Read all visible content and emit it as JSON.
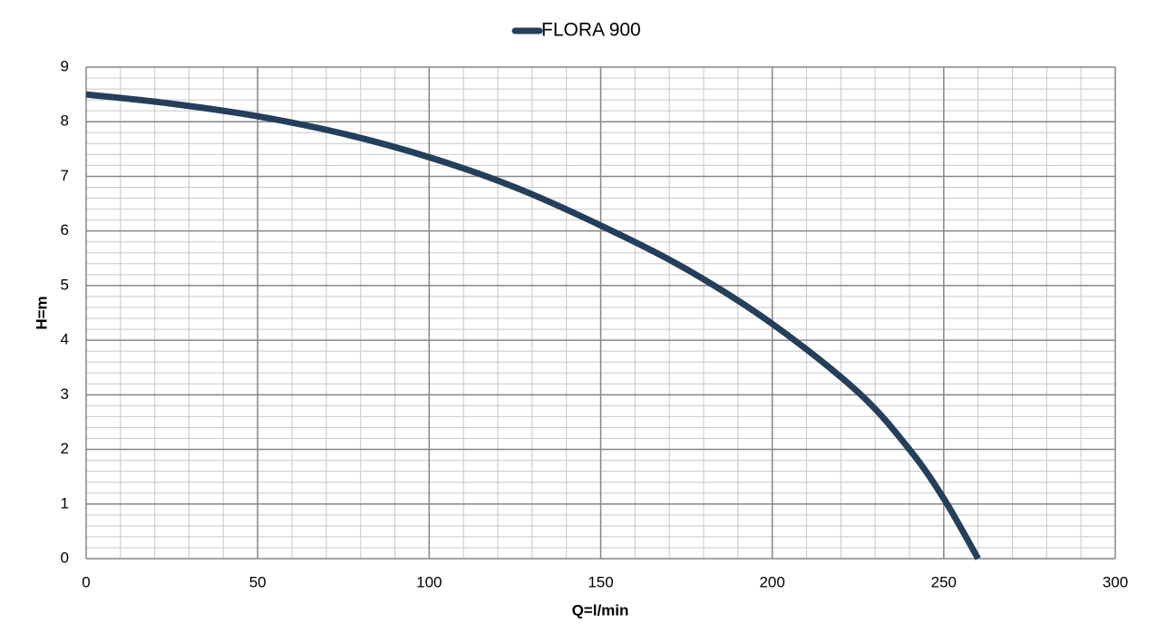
{
  "chart_data": {
    "type": "line",
    "x_label": "Q=l/min",
    "y_label": "H=m",
    "x": [
      0,
      25,
      50,
      75,
      100,
      125,
      150,
      175,
      200,
      225,
      240,
      250,
      260
    ],
    "series": [
      {
        "name": "FLORA 900",
        "color": "#243f5c",
        "values": [
          8.5,
          8.33,
          8.1,
          7.78,
          7.35,
          6.8,
          6.1,
          5.3,
          4.3,
          3.05,
          2.0,
          1.1,
          0
        ]
      }
    ],
    "xlim": [
      0,
      300
    ],
    "xticks": [
      0,
      50,
      100,
      150,
      200,
      250,
      300
    ],
    "ylim": [
      0,
      9
    ],
    "yticks": [
      0,
      1,
      2,
      3,
      4,
      5,
      6,
      7,
      8,
      9
    ],
    "grid": true,
    "x_minor_step": 10,
    "y_minor_step": 0.2,
    "legend": "top"
  }
}
